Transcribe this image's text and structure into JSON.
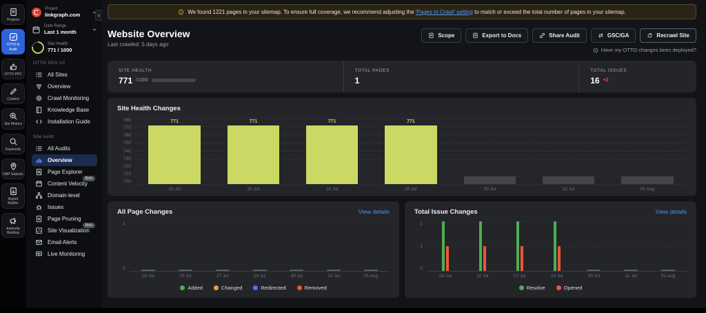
{
  "rail": {
    "items": [
      {
        "label": "Projects",
        "icon": "doc",
        "active": false
      },
      {
        "label": "OTTO & Audit",
        "icon": "check-square",
        "active": true
      },
      {
        "label": "OTTO PPC",
        "icon": "thumb",
        "active": false
      },
      {
        "label": "Content",
        "icon": "pencil",
        "active": false
      },
      {
        "label": "Site Metrics",
        "icon": "zoom-plus",
        "active": false
      },
      {
        "label": "Keywords",
        "icon": "search",
        "active": false
      },
      {
        "label": "GBP Galactic",
        "icon": "pin",
        "active": false
      },
      {
        "label": "Report Builder",
        "icon": "report",
        "active": false
      },
      {
        "label": "Authority Building",
        "icon": "megaphone",
        "active": false
      }
    ]
  },
  "sidebar": {
    "project": {
      "label": "Project",
      "value": "linkgraph.com"
    },
    "date_range": {
      "label": "Date Range",
      "value": "Last 1 month"
    },
    "site_health": {
      "label": "Site Health",
      "value": "771 / 1000",
      "progress_pct": 77
    },
    "sections": [
      {
        "title": "OTTO SEO V2",
        "items": [
          {
            "label": "All Sites",
            "icon": "list"
          },
          {
            "label": "Overview",
            "icon": "layers"
          },
          {
            "label": "Crawl Monitoring",
            "icon": "gear"
          },
          {
            "label": "Knowledge Base",
            "icon": "book"
          },
          {
            "label": "Installation Guide",
            "icon": "code"
          }
        ]
      },
      {
        "title": "Site Audit",
        "items": [
          {
            "label": "All Audits",
            "icon": "list"
          },
          {
            "label": "Overview",
            "icon": "bars",
            "active": true
          },
          {
            "label": "Page Explorer",
            "icon": "doc-search"
          },
          {
            "label": "Content Velocity",
            "icon": "calendar",
            "badge": "Beta"
          },
          {
            "label": "Domain-level",
            "icon": "hierarchy"
          },
          {
            "label": "Issues",
            "icon": "bug"
          },
          {
            "label": "Page Pruning",
            "icon": "doc-x"
          },
          {
            "label": "Site Visualization",
            "icon": "scatter",
            "badge": "Beta"
          },
          {
            "label": "Email Alerts",
            "icon": "mail"
          },
          {
            "label": "Live Monitoring",
            "icon": "monitor"
          }
        ]
      }
    ]
  },
  "banner": {
    "icon": "info",
    "text_before": "We found 1221 pages in your sitemap. To ensure full coverage, we recommend adjusting the ",
    "link_text": "'Pages to Crawl' setting",
    "text_after": " to match or exceed the total number of pages in your sitemap."
  },
  "header": {
    "title": "Website Overview",
    "subtitle": "Last crawled: 5 days ago",
    "buttons": [
      {
        "label": "Scope",
        "icon": "doc"
      },
      {
        "label": "Export to Docs",
        "icon": "doc"
      },
      {
        "label": "Share Audit",
        "icon": "link"
      },
      {
        "label": "GSC/GA",
        "icon": "swap"
      },
      {
        "label": "Recrawl Site",
        "icon": "refresh",
        "highlight": true
      }
    ],
    "deploy_note": "Have my OTTO changes been deployed?"
  },
  "stats": {
    "site_health": {
      "label": "SITE HEALTH",
      "value": "771",
      "total": "/1000",
      "progress_pct": 77
    },
    "total_pages": {
      "label": "TOTAL PAGES",
      "value": "1"
    },
    "total_issues": {
      "label": "TOTAL ISSUES",
      "value": "16",
      "delta": "+2",
      "delta_color": "#e25757"
    }
  },
  "chart_data": [
    {
      "id": "site_health_changes",
      "type": "bar",
      "title": "Site Health Changes",
      "categories": [
        "20 Jul",
        "20 Jul",
        "20 Jul",
        "20 Jul",
        "30 Jul",
        "31 Jul",
        "01 Aug"
      ],
      "values": [
        771,
        771,
        771,
        771,
        null,
        null,
        null
      ],
      "ylim": [
        700,
        780
      ],
      "yticks": [
        780,
        770,
        760,
        750,
        740,
        730,
        720,
        710,
        700
      ],
      "bar_color": "#cbd964",
      "placeholder_color": "#43454b",
      "grid": "dotted",
      "legend_position": "none"
    },
    {
      "id": "all_page_changes",
      "type": "bar",
      "title": "All Page Changes",
      "link_label": "View details",
      "categories": [
        "03 Jul",
        "10 Jul",
        "17 Jul",
        "24 Jul",
        "30 Jul",
        "31 Jul",
        "01 Aug"
      ],
      "series": [
        {
          "name": "Added",
          "color": "#4caf50",
          "values": [
            0,
            0,
            0,
            0,
            0,
            0,
            0
          ]
        },
        {
          "name": "Changed",
          "color": "#f2a33c",
          "values": [
            0,
            0,
            0,
            0,
            0,
            0,
            0
          ]
        },
        {
          "name": "Redirected",
          "color": "#3e7bfa",
          "values": [
            0,
            0,
            0,
            0,
            0,
            0,
            0
          ]
        },
        {
          "name": "Removed",
          "color": "#f0543c",
          "values": [
            0,
            0,
            0,
            0,
            0,
            0,
            0
          ]
        }
      ],
      "ylim": [
        0,
        1
      ],
      "yticks": [
        1,
        0
      ],
      "grid": "dashed",
      "legend_position": "bottom"
    },
    {
      "id": "total_issue_changes",
      "type": "bar",
      "title": "Total Issue Changes",
      "link_label": "View details",
      "categories": [
        "03 Jul",
        "10 Jul",
        "17 Jul",
        "24 Jul",
        "30 Jul",
        "31 Jul",
        "01 Aug"
      ],
      "series": [
        {
          "name": "Resolve",
          "color": "#4caf50",
          "values": [
            2,
            2,
            2,
            2,
            0,
            0,
            0
          ]
        },
        {
          "name": "Opened",
          "color": "#f0543c",
          "values": [
            1,
            1,
            1,
            1,
            0,
            0,
            0
          ]
        }
      ],
      "ylim": [
        0,
        2
      ],
      "yticks": [
        2,
        1,
        0
      ],
      "grid": "dashed",
      "legend_position": "bottom"
    }
  ],
  "colors": {
    "accent_blue": "#4596f7",
    "bar_green": "#cbd964",
    "issue_red": "#e25757",
    "active_nav_bg": "#1b2b4f",
    "rail_active": "#2e63d9",
    "banner_bg": "#2a2418",
    "card_bg": "#242529"
  }
}
